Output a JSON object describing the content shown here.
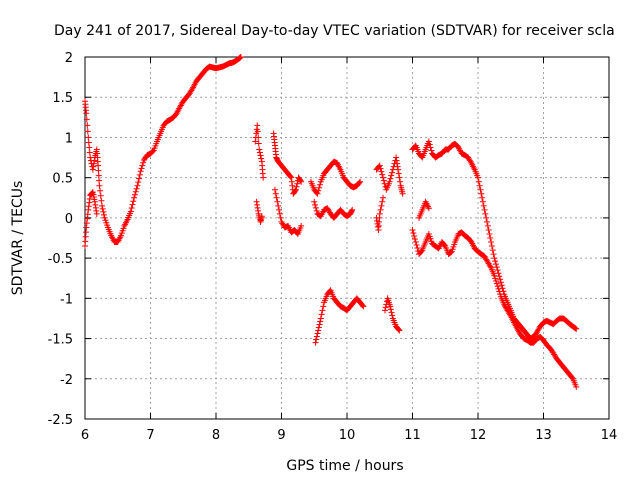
{
  "chart_data": {
    "type": "scatter",
    "title": "Day 241 of 2017, Sidereal Day-to-day VTEC variation (SDTVAR) for receiver scla",
    "xlabel": "GPS time / hours",
    "ylabel": "SDTVAR / TECUs",
    "xlim": [
      6,
      14
    ],
    "ylim": [
      -2.5,
      2
    ],
    "xticks": [
      6,
      7,
      8,
      9,
      10,
      11,
      12,
      13,
      14
    ],
    "xtick_labels": [
      "6",
      "7",
      "8",
      "9",
      "10",
      "11",
      "12",
      "13",
      "14"
    ],
    "yticks": [
      2,
      1.5,
      1,
      0.5,
      0,
      -0.5,
      -1,
      -1.5,
      -2,
      -2.5
    ],
    "ytick_labels": [
      "2",
      "1.5",
      "1",
      "0.5",
      "0",
      "-0.5",
      "-1",
      "-1.5",
      "-2",
      "-2.5"
    ],
    "grid": true,
    "marker": "+",
    "color": "#ff0000",
    "series": [
      {
        "name": "SDTVAR",
        "segments": [
          [
            [
              6.0,
              1.45
            ],
            [
              6.02,
              1.3
            ],
            [
              6.05,
              1.0
            ],
            [
              6.08,
              0.75
            ],
            [
              6.12,
              0.6
            ],
            [
              6.15,
              0.75
            ],
            [
              6.18,
              0.85
            ],
            [
              6.2,
              0.65
            ],
            [
              6.22,
              0.4
            ],
            [
              6.26,
              0.15
            ],
            [
              6.3,
              0.0
            ],
            [
              6.35,
              -0.12
            ],
            [
              6.4,
              -0.22
            ],
            [
              6.45,
              -0.3
            ],
            [
              6.5,
              -0.3
            ],
            [
              6.55,
              -0.22
            ],
            [
              6.6,
              -0.1
            ],
            [
              6.65,
              -0.02
            ],
            [
              6.7,
              0.08
            ],
            [
              6.75,
              0.25
            ],
            [
              6.8,
              0.4
            ],
            [
              6.85,
              0.58
            ],
            [
              6.9,
              0.72
            ],
            [
              6.95,
              0.78
            ],
            [
              7.0,
              0.8
            ],
            [
              7.05,
              0.84
            ],
            [
              7.1,
              0.95
            ],
            [
              7.15,
              1.05
            ],
            [
              7.2,
              1.15
            ],
            [
              7.25,
              1.2
            ],
            [
              7.3,
              1.22
            ],
            [
              7.35,
              1.25
            ],
            [
              7.4,
              1.3
            ],
            [
              7.45,
              1.38
            ],
            [
              7.5,
              1.45
            ],
            [
              7.55,
              1.5
            ],
            [
              7.6,
              1.55
            ],
            [
              7.65,
              1.62
            ],
            [
              7.7,
              1.7
            ],
            [
              7.75,
              1.75
            ],
            [
              7.8,
              1.8
            ],
            [
              7.85,
              1.85
            ],
            [
              7.9,
              1.88
            ],
            [
              7.95,
              1.87
            ],
            [
              8.0,
              1.86
            ],
            [
              8.05,
              1.87
            ],
            [
              8.1,
              1.88
            ],
            [
              8.15,
              1.9
            ],
            [
              8.2,
              1.92
            ],
            [
              8.25,
              1.93
            ],
            [
              8.3,
              1.95
            ],
            [
              8.35,
              1.98
            ],
            [
              8.38,
              2.0
            ]
          ],
          [
            [
              6.0,
              -0.35
            ],
            [
              6.02,
              -0.12
            ],
            [
              6.05,
              0.1
            ],
            [
              6.08,
              0.28
            ],
            [
              6.12,
              0.32
            ],
            [
              6.15,
              0.2
            ],
            [
              6.18,
              0.05
            ]
          ],
          [
            [
              8.6,
              0.95
            ],
            [
              8.63,
              1.15
            ],
            [
              8.66,
              0.85
            ],
            [
              8.7,
              0.7
            ],
            [
              8.72,
              0.5
            ]
          ],
          [
            [
              8.62,
              0.2
            ],
            [
              8.65,
              0.05
            ],
            [
              8.68,
              -0.05
            ],
            [
              8.7,
              0.02
            ]
          ],
          [
            [
              8.88,
              1.05
            ],
            [
              8.9,
              0.9
            ],
            [
              8.92,
              0.75
            ],
            [
              8.95,
              0.7
            ],
            [
              9.0,
              0.65
            ],
            [
              9.05,
              0.6
            ],
            [
              9.1,
              0.55
            ],
            [
              9.15,
              0.5
            ],
            [
              9.18,
              0.3
            ],
            [
              9.22,
              0.35
            ],
            [
              9.26,
              0.5
            ],
            [
              9.3,
              0.45
            ]
          ],
          [
            [
              8.9,
              0.35
            ],
            [
              8.95,
              0.15
            ],
            [
              9.0,
              -0.05
            ],
            [
              9.05,
              -0.12
            ],
            [
              9.1,
              -0.1
            ],
            [
              9.15,
              -0.18
            ],
            [
              9.2,
              -0.15
            ],
            [
              9.25,
              -0.2
            ],
            [
              9.3,
              -0.1
            ]
          ],
          [
            [
              9.45,
              0.45
            ],
            [
              9.5,
              0.35
            ],
            [
              9.55,
              0.3
            ],
            [
              9.6,
              0.45
            ],
            [
              9.65,
              0.55
            ],
            [
              9.7,
              0.6
            ],
            [
              9.75,
              0.65
            ],
            [
              9.8,
              0.7
            ],
            [
              9.85,
              0.68
            ],
            [
              9.9,
              0.6
            ],
            [
              9.95,
              0.5
            ],
            [
              10.0,
              0.45
            ],
            [
              10.05,
              0.4
            ],
            [
              10.1,
              0.38
            ],
            [
              10.15,
              0.4
            ],
            [
              10.2,
              0.45
            ]
          ],
          [
            [
              9.5,
              0.2
            ],
            [
              9.55,
              0.05
            ],
            [
              9.6,
              0.02
            ],
            [
              9.65,
              0.1
            ],
            [
              9.7,
              0.12
            ],
            [
              9.75,
              0.05
            ],
            [
              9.8,
              0.0
            ],
            [
              9.85,
              0.05
            ],
            [
              9.9,
              0.1
            ],
            [
              9.95,
              0.05
            ],
            [
              10.0,
              0.02
            ],
            [
              10.05,
              0.05
            ],
            [
              10.08,
              0.1
            ]
          ],
          [
            [
              9.52,
              -1.55
            ],
            [
              9.56,
              -1.4
            ],
            [
              9.6,
              -1.25
            ],
            [
              9.65,
              -1.05
            ],
            [
              9.7,
              -0.95
            ],
            [
              9.75,
              -0.9
            ],
            [
              9.8,
              -1.0
            ],
            [
              9.85,
              -1.05
            ],
            [
              9.9,
              -1.1
            ],
            [
              9.95,
              -1.12
            ],
            [
              10.0,
              -1.15
            ],
            [
              10.05,
              -1.1
            ],
            [
              10.1,
              -1.05
            ],
            [
              10.15,
              -1.0
            ],
            [
              10.2,
              -1.05
            ],
            [
              10.25,
              -1.1
            ]
          ],
          [
            [
              10.45,
              0.6
            ],
            [
              10.5,
              0.65
            ],
            [
              10.55,
              0.5
            ],
            [
              10.6,
              0.35
            ],
            [
              10.65,
              0.45
            ],
            [
              10.7,
              0.6
            ],
            [
              10.75,
              0.75
            ],
            [
              10.78,
              0.6
            ],
            [
              10.82,
              0.4
            ],
            [
              10.85,
              0.3
            ]
          ],
          [
            [
              10.45,
              0.0
            ],
            [
              10.48,
              -0.15
            ],
            [
              10.5,
              0.05
            ],
            [
              10.55,
              0.25
            ]
          ],
          [
            [
              10.58,
              -1.15
            ],
            [
              10.62,
              -1.0
            ],
            [
              10.66,
              -1.1
            ],
            [
              10.7,
              -1.25
            ],
            [
              10.75,
              -1.35
            ],
            [
              10.8,
              -1.4
            ]
          ],
          [
            [
              11.0,
              0.85
            ],
            [
              11.05,
              0.9
            ],
            [
              11.1,
              0.8
            ],
            [
              11.15,
              0.75
            ],
            [
              11.2,
              0.85
            ],
            [
              11.25,
              0.95
            ],
            [
              11.3,
              0.8
            ],
            [
              11.35,
              0.75
            ],
            [
              11.4,
              0.78
            ],
            [
              11.45,
              0.8
            ],
            [
              11.5,
              0.85
            ],
            [
              11.55,
              0.85
            ],
            [
              11.6,
              0.9
            ],
            [
              11.65,
              0.92
            ],
            [
              11.7,
              0.88
            ],
            [
              11.75,
              0.8
            ],
            [
              11.8,
              0.78
            ],
            [
              11.85,
              0.75
            ],
            [
              11.9,
              0.68
            ],
            [
              11.95,
              0.6
            ],
            [
              12.0,
              0.5
            ],
            [
              12.05,
              0.3
            ],
            [
              12.1,
              0.1
            ],
            [
              12.15,
              -0.1
            ],
            [
              12.2,
              -0.3
            ],
            [
              12.25,
              -0.5
            ],
            [
              12.3,
              -0.65
            ],
            [
              12.35,
              -0.8
            ],
            [
              12.4,
              -0.95
            ],
            [
              12.45,
              -1.05
            ],
            [
              12.5,
              -1.15
            ],
            [
              12.55,
              -1.25
            ],
            [
              12.6,
              -1.3
            ],
            [
              12.65,
              -1.35
            ],
            [
              12.7,
              -1.4
            ],
            [
              12.75,
              -1.45
            ],
            [
              12.8,
              -1.5
            ],
            [
              12.85,
              -1.48
            ],
            [
              12.9,
              -1.42
            ],
            [
              12.95,
              -1.35
            ],
            [
              13.0,
              -1.3
            ],
            [
              13.05,
              -1.28
            ],
            [
              13.1,
              -1.3
            ],
            [
              13.15,
              -1.32
            ],
            [
              13.2,
              -1.28
            ],
            [
              13.25,
              -1.25
            ],
            [
              13.3,
              -1.25
            ],
            [
              13.35,
              -1.28
            ],
            [
              13.4,
              -1.32
            ],
            [
              13.45,
              -1.35
            ],
            [
              13.5,
              -1.38
            ]
          ],
          [
            [
              11.0,
              -0.15
            ],
            [
              11.05,
              -0.3
            ],
            [
              11.1,
              -0.45
            ],
            [
              11.15,
              -0.4
            ],
            [
              11.2,
              -0.3
            ],
            [
              11.25,
              -0.2
            ],
            [
              11.3,
              -0.32
            ],
            [
              11.35,
              -0.35
            ],
            [
              11.4,
              -0.38
            ],
            [
              11.45,
              -0.3
            ],
            [
              11.5,
              -0.35
            ],
            [
              11.55,
              -0.45
            ],
            [
              11.6,
              -0.42
            ],
            [
              11.65,
              -0.3
            ],
            [
              11.7,
              -0.2
            ],
            [
              11.75,
              -0.18
            ],
            [
              11.8,
              -0.22
            ],
            [
              11.85,
              -0.25
            ],
            [
              11.9,
              -0.3
            ],
            [
              11.95,
              -0.38
            ],
            [
              12.0,
              -0.42
            ],
            [
              12.05,
              -0.45
            ],
            [
              12.1,
              -0.48
            ],
            [
              12.15,
              -0.55
            ],
            [
              12.2,
              -0.62
            ],
            [
              12.25,
              -0.72
            ],
            [
              12.3,
              -0.85
            ],
            [
              12.35,
              -0.98
            ],
            [
              12.4,
              -1.08
            ],
            [
              12.45,
              -1.15
            ],
            [
              12.5,
              -1.22
            ],
            [
              12.55,
              -1.3
            ],
            [
              12.6,
              -1.38
            ],
            [
              12.65,
              -1.45
            ],
            [
              12.7,
              -1.5
            ],
            [
              12.75,
              -1.52
            ],
            [
              12.8,
              -1.55
            ],
            [
              12.85,
              -1.55
            ],
            [
              12.9,
              -1.5
            ],
            [
              12.95,
              -1.48
            ],
            [
              13.0,
              -1.52
            ],
            [
              13.05,
              -1.58
            ],
            [
              13.1,
              -1.62
            ],
            [
              13.15,
              -1.68
            ],
            [
              13.2,
              -1.75
            ],
            [
              13.25,
              -1.8
            ],
            [
              13.3,
              -1.85
            ],
            [
              13.35,
              -1.9
            ],
            [
              13.4,
              -1.95
            ],
            [
              13.45,
              -2.0
            ],
            [
              13.5,
              -2.1
            ]
          ],
          [
            [
              11.1,
              0.0
            ],
            [
              11.15,
              0.1
            ],
            [
              11.2,
              0.2
            ],
            [
              11.25,
              0.12
            ]
          ]
        ]
      }
    ]
  }
}
